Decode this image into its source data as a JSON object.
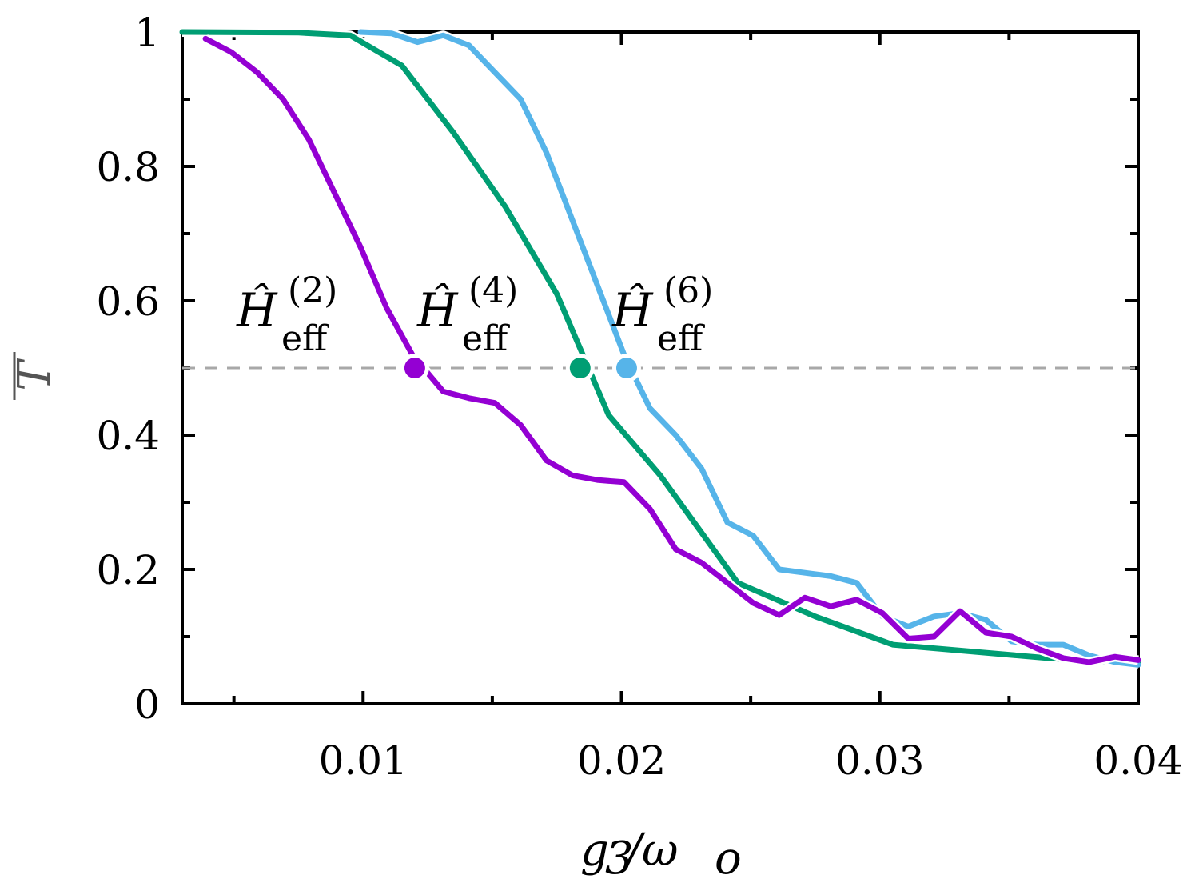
{
  "chart_data": {
    "type": "line",
    "title": "",
    "xlabel": "g3/ωo",
    "ylabel": "T̄",
    "xlim": [
      0.003,
      0.04
    ],
    "ylim": [
      0,
      1
    ],
    "x_ticks": [
      {
        "value": 0.01,
        "label": "0.01"
      },
      {
        "value": 0.02,
        "label": "0.02"
      },
      {
        "value": 0.03,
        "label": "0.03"
      },
      {
        "value": 0.04,
        "label": "0.04"
      }
    ],
    "y_ticks": [
      {
        "value": 0,
        "label": "0"
      },
      {
        "value": 0.2,
        "label": "0.2"
      },
      {
        "value": 0.4,
        "label": "0.4"
      },
      {
        "value": 0.6,
        "label": "0.6"
      },
      {
        "value": 0.8,
        "label": "0.8"
      },
      {
        "value": 1,
        "label": "1"
      }
    ],
    "reference_line": {
      "y": 0.5,
      "style": "dashed",
      "color": "#a8a8a8"
    },
    "series": [
      {
        "name": "Heff(2)",
        "color": "#9400d3",
        "x": [
          0.0039,
          0.0049,
          0.0059,
          0.0069,
          0.0079,
          0.0089,
          0.0099,
          0.0109,
          0.0119,
          0.0131,
          0.0141,
          0.0151,
          0.0161,
          0.0171,
          0.0181,
          0.0191,
          0.0201,
          0.0211,
          0.0221,
          0.0231,
          0.0241,
          0.0251,
          0.0261,
          0.0271,
          0.0281,
          0.0291,
          0.0301,
          0.0311,
          0.0321,
          0.0331,
          0.0341,
          0.0351,
          0.0361,
          0.0371,
          0.0381,
          0.0391,
          0.04
        ],
        "y": [
          0.99,
          0.97,
          0.94,
          0.9,
          0.84,
          0.76,
          0.68,
          0.59,
          0.52,
          0.465,
          0.455,
          0.448,
          0.415,
          0.362,
          0.34,
          0.333,
          0.33,
          0.29,
          0.23,
          0.21,
          0.18,
          0.15,
          0.132,
          0.158,
          0.145,
          0.155,
          0.135,
          0.097,
          0.1,
          0.138,
          0.106,
          0.1,
          0.082,
          0.068,
          0.062,
          0.07,
          0.065
        ]
      },
      {
        "name": "Heff(4)",
        "color": "#009e73",
        "x": [
          0.003,
          0.0075,
          0.0095,
          0.0115,
          0.0135,
          0.0155,
          0.0175,
          0.0195,
          0.0215,
          0.0245,
          0.0275,
          0.0305,
          0.0335,
          0.0365,
          0.04
        ],
        "y": [
          1.0,
          0.999,
          0.995,
          0.95,
          0.85,
          0.74,
          0.61,
          0.43,
          0.34,
          0.18,
          0.13,
          0.088,
          0.078,
          0.068,
          0.06
        ]
      },
      {
        "name": "Heff(6)",
        "color": "#56b4e9",
        "x": [
          0.0099,
          0.0111,
          0.0121,
          0.0131,
          0.0141,
          0.0151,
          0.0161,
          0.0171,
          0.0181,
          0.0191,
          0.0201,
          0.0211,
          0.0221,
          0.0231,
          0.0241,
          0.0251,
          0.0261,
          0.0271,
          0.0281,
          0.0291,
          0.0301,
          0.0311,
          0.0321,
          0.0331,
          0.0341,
          0.0351,
          0.0361,
          0.0371,
          0.0381,
          0.0391,
          0.04
        ],
        "y": [
          1.0,
          0.998,
          0.985,
          0.995,
          0.98,
          0.94,
          0.9,
          0.82,
          0.72,
          0.62,
          0.52,
          0.44,
          0.4,
          0.35,
          0.27,
          0.25,
          0.2,
          0.195,
          0.19,
          0.18,
          0.13,
          0.115,
          0.13,
          0.135,
          0.125,
          0.093,
          0.088,
          0.088,
          0.072,
          0.062,
          0.058
        ]
      }
    ],
    "markers": [
      {
        "series": "Heff(2)",
        "x": 0.012,
        "y": 0.5,
        "color": "#9400d3"
      },
      {
        "series": "Heff(4)",
        "x": 0.0184,
        "y": 0.5,
        "color": "#009e73"
      },
      {
        "series": "Heff(6)",
        "x": 0.0202,
        "y": 0.5,
        "color": "#56b4e9"
      }
    ],
    "annotations": [
      {
        "base": "Ĥ",
        "superscript": "(2)",
        "subscript": "eff"
      },
      {
        "base": "Ĥ",
        "superscript": "(4)",
        "subscript": "eff"
      },
      {
        "base": "Ĥ",
        "superscript": "(6)",
        "subscript": "eff"
      }
    ],
    "axis_label_parts": {
      "x_main": "g",
      "x_sub": "3",
      "x_slash": "/ω",
      "x_sub2": "o",
      "y_main": "T"
    },
    "grid": false,
    "legend": "none"
  }
}
